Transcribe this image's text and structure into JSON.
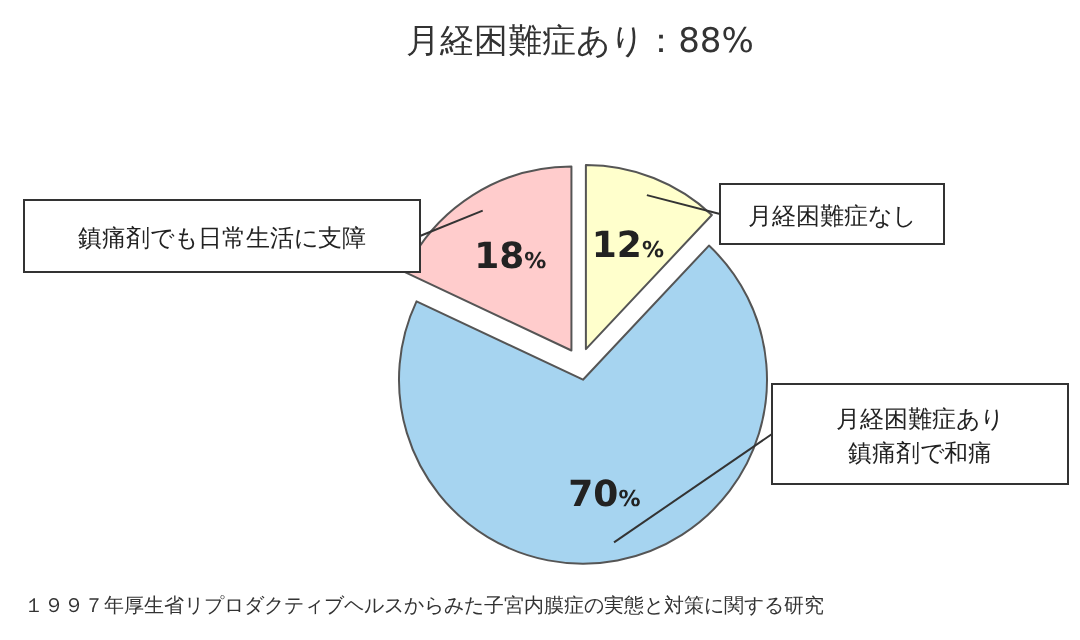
{
  "chart_data": {
    "type": "pie",
    "title": "月経困難症あり：88%",
    "categories": [
      "月経困難症なし",
      "月経困難症あり鎮痛剤で和痛",
      "鎮痛剤でも日常生活に支障"
    ],
    "values": [
      12,
      70,
      18
    ],
    "value_labels": [
      "12%",
      "70%",
      "18%"
    ],
    "colors": [
      "#ffffcc",
      "#a6d4f0",
      "#ffcccc"
    ],
    "annotations": [
      "１９９７年厚生省リプロダクティブヘルスからみた子宮内膜症の実態と対策に関する研究"
    ]
  }
}
